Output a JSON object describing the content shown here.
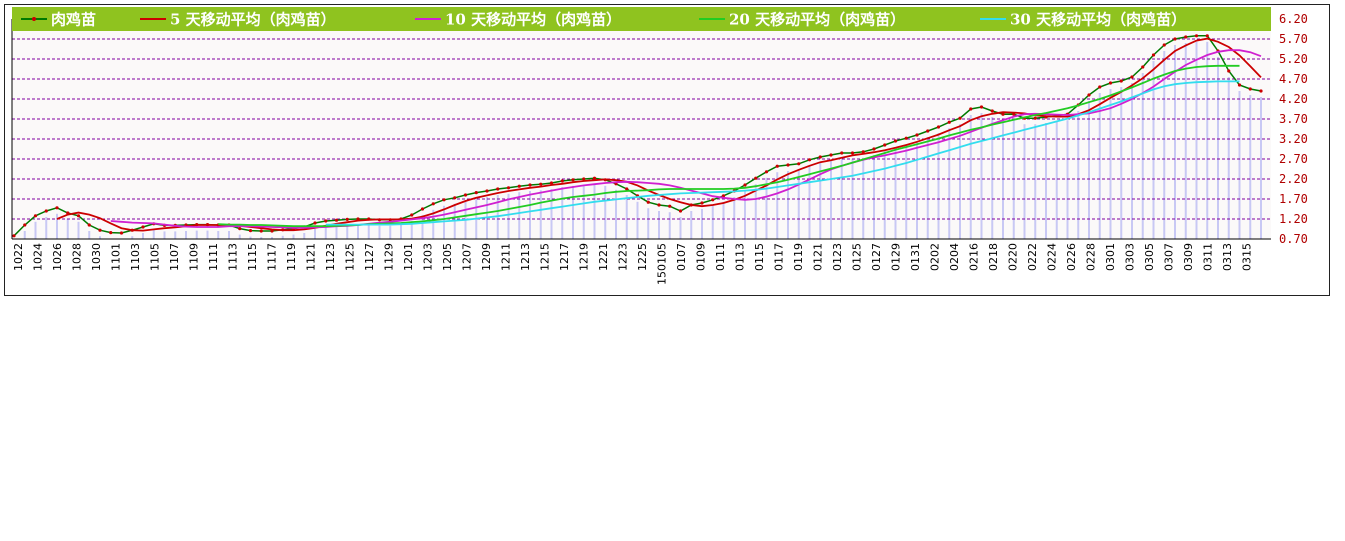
{
  "colors": {
    "legend_bg": "#8fc31f",
    "grid": "#7f00a0",
    "bars": "#c8c8f4",
    "tick_text": "#b00000"
  },
  "chart_data": {
    "type": "line",
    "ylim": [
      0.7,
      6.2
    ],
    "y_ticks": [
      "6.20",
      "5.70",
      "5.20",
      "4.70",
      "4.20",
      "3.70",
      "3.20",
      "2.70",
      "2.20",
      "1.70",
      "1.20",
      "0.70"
    ],
    "x_tick_labels": [
      "1022",
      "1024",
      "1026",
      "1028",
      "1030",
      "1101",
      "1103",
      "1105",
      "1107",
      "1109",
      "1111",
      "1113",
      "1115",
      "1117",
      "1119",
      "1121",
      "1123",
      "1125",
      "1127",
      "1129",
      "1201",
      "1203",
      "1205",
      "1207",
      "1209",
      "1211",
      "1213",
      "1215",
      "1217",
      "1219",
      "1221",
      "1223",
      "1225",
      "150105",
      "0107",
      "0109",
      "0111",
      "0113",
      "0115",
      "0117",
      "0119",
      "0121",
      "0123",
      "0125",
      "0127",
      "0129",
      "0131",
      "0202",
      "0204",
      "0216",
      "0218",
      "0220",
      "0222",
      "0224",
      "0226",
      "0228",
      "0301",
      "0303",
      "0305",
      "0307",
      "0309",
      "0311",
      "0313",
      "0315"
    ],
    "grid": true,
    "legend_position": "top",
    "series": [
      {
        "name": "肉鸡苗",
        "color": "#007a00",
        "marker_color": "#cc0000",
        "values": [
          0.78,
          1.05,
          1.28,
          1.4,
          1.48,
          1.35,
          1.28,
          1.05,
          0.92,
          0.86,
          0.85,
          0.92,
          1.0,
          1.08,
          1.04,
          1.04,
          1.05,
          1.06,
          1.06,
          1.05,
          1.05,
          0.96,
          0.91,
          0.9,
          0.9,
          0.93,
          0.96,
          1.0,
          1.1,
          1.15,
          1.17,
          1.19,
          1.2,
          1.2,
          1.18,
          1.18,
          1.2,
          1.3,
          1.45,
          1.58,
          1.68,
          1.73,
          1.8,
          1.86,
          1.9,
          1.95,
          1.98,
          2.02,
          2.05,
          2.07,
          2.1,
          2.15,
          2.18,
          2.2,
          2.22,
          2.18,
          2.08,
          1.95,
          1.78,
          1.62,
          1.55,
          1.52,
          1.4,
          1.55,
          1.6,
          1.68,
          1.78,
          1.9,
          2.05,
          2.22,
          2.38,
          2.52,
          2.55,
          2.58,
          2.68,
          2.75,
          2.8,
          2.85,
          2.85,
          2.88,
          2.95,
          3.05,
          3.15,
          3.22,
          3.3,
          3.4,
          3.5,
          3.62,
          3.72,
          3.95,
          4.0,
          3.9,
          3.82,
          3.82,
          3.72,
          3.72,
          3.75,
          3.78,
          3.82,
          4.05,
          4.3,
          4.5,
          4.6,
          4.65,
          4.75,
          5.0,
          5.3,
          5.55,
          5.7,
          5.75,
          5.78,
          5.78,
          5.4,
          4.9,
          4.55,
          4.45,
          4.4
        ]
      },
      {
        "name": "5 天移动平均（肉鸡苗）",
        "color": "#cc0000",
        "values": [
          null,
          null,
          null,
          null,
          1.2,
          1.31,
          1.36,
          1.31,
          1.22,
          1.09,
          0.97,
          0.92,
          0.91,
          0.94,
          0.97,
          0.99,
          1.02,
          1.05,
          1.05,
          1.05,
          1.05,
          1.03,
          1.0,
          0.97,
          0.94,
          0.92,
          0.92,
          0.94,
          0.98,
          1.03,
          1.08,
          1.12,
          1.16,
          1.18,
          1.19,
          1.19,
          1.19,
          1.21,
          1.26,
          1.34,
          1.44,
          1.55,
          1.65,
          1.73,
          1.79,
          1.85,
          1.9,
          1.94,
          1.98,
          2.01,
          2.05,
          2.08,
          2.12,
          2.15,
          2.17,
          2.19,
          2.17,
          2.13,
          2.04,
          1.91,
          1.8,
          1.7,
          1.62,
          1.55,
          1.52,
          1.55,
          1.6,
          1.68,
          1.78,
          1.91,
          2.04,
          2.19,
          2.32,
          2.43,
          2.53,
          2.62,
          2.67,
          2.73,
          2.79,
          2.83,
          2.87,
          2.92,
          2.98,
          3.05,
          3.13,
          3.22,
          3.31,
          3.42,
          3.52,
          3.67,
          3.77,
          3.83,
          3.87,
          3.86,
          3.84,
          3.79,
          3.77,
          3.76,
          3.76,
          3.82,
          3.92,
          4.07,
          4.23,
          4.38,
          4.54,
          4.72,
          4.94,
          5.18,
          5.4,
          5.54,
          5.66,
          5.71,
          5.63,
          5.5,
          5.29,
          5.02,
          4.74
        ]
      },
      {
        "name": "10 天移动平均（肉鸡苗）",
        "color": "#d020d0",
        "values": [
          null,
          null,
          null,
          null,
          null,
          null,
          null,
          null,
          null,
          1.15,
          1.13,
          1.11,
          1.1,
          1.09,
          1.06,
          1.03,
          1.01,
          1.0,
          1.0,
          1.0,
          1.02,
          1.02,
          1.02,
          1.01,
          1.0,
          0.99,
          0.98,
          0.98,
          0.99,
          1.0,
          1.02,
          1.03,
          1.05,
          1.08,
          1.11,
          1.13,
          1.16,
          1.19,
          1.22,
          1.26,
          1.31,
          1.37,
          1.43,
          1.49,
          1.55,
          1.62,
          1.69,
          1.75,
          1.81,
          1.86,
          1.91,
          1.96,
          2.0,
          2.04,
          2.07,
          2.1,
          2.12,
          2.13,
          2.12,
          2.1,
          2.08,
          2.04,
          1.98,
          1.91,
          1.84,
          1.77,
          1.73,
          1.7,
          1.68,
          1.7,
          1.76,
          1.84,
          1.94,
          2.06,
          2.19,
          2.32,
          2.44,
          2.53,
          2.61,
          2.68,
          2.74,
          2.79,
          2.85,
          2.91,
          2.98,
          3.05,
          3.12,
          3.2,
          3.28,
          3.38,
          3.48,
          3.58,
          3.67,
          3.76,
          3.82,
          3.83,
          3.82,
          3.81,
          3.8,
          3.82,
          3.84,
          3.9,
          3.97,
          4.08,
          4.2,
          4.35,
          4.51,
          4.7,
          4.88,
          5.05,
          5.18,
          5.3,
          5.38,
          5.42,
          5.42,
          5.37,
          5.27
        ]
      },
      {
        "name": "20 天移动平均（肉鸡苗）",
        "color": "#22cc22",
        "values": [
          null,
          null,
          null,
          null,
          null,
          null,
          null,
          null,
          null,
          null,
          null,
          null,
          null,
          null,
          null,
          null,
          null,
          null,
          null,
          1.07,
          1.06,
          1.06,
          1.05,
          1.05,
          1.04,
          1.03,
          1.02,
          1.02,
          1.02,
          1.02,
          1.03,
          1.04,
          1.05,
          1.07,
          1.08,
          1.09,
          1.1,
          1.12,
          1.14,
          1.17,
          1.2,
          1.24,
          1.28,
          1.32,
          1.36,
          1.4,
          1.45,
          1.5,
          1.55,
          1.61,
          1.66,
          1.71,
          1.75,
          1.78,
          1.81,
          1.85,
          1.88,
          1.9,
          1.91,
          1.92,
          1.94,
          1.95,
          1.95,
          1.95,
          1.95,
          1.95,
          1.95,
          1.96,
          1.98,
          2.02,
          2.07,
          2.12,
          2.18,
          2.25,
          2.32,
          2.39,
          2.46,
          2.53,
          2.61,
          2.69,
          2.77,
          2.85,
          2.93,
          3.0,
          3.07,
          3.14,
          3.21,
          3.29,
          3.36,
          3.43,
          3.49,
          3.56,
          3.62,
          3.68,
          3.74,
          3.8,
          3.85,
          3.91,
          3.97,
          4.04,
          4.12,
          4.2,
          4.29,
          4.39,
          4.49,
          4.6,
          4.71,
          4.81,
          4.9,
          4.96,
          5.0,
          5.02,
          5.03,
          5.03,
          5.03
        ]
      },
      {
        "name": "30 天移动平均（肉鸡苗）",
        "color": "#33ddee",
        "values": [
          null,
          null,
          null,
          null,
          null,
          null,
          null,
          null,
          null,
          null,
          null,
          null,
          null,
          null,
          null,
          null,
          null,
          null,
          null,
          null,
          null,
          null,
          null,
          null,
          null,
          null,
          null,
          null,
          null,
          1.06,
          1.06,
          1.06,
          1.06,
          1.06,
          1.06,
          1.06,
          1.07,
          1.08,
          1.1,
          1.12,
          1.14,
          1.16,
          1.18,
          1.21,
          1.24,
          1.27,
          1.31,
          1.35,
          1.39,
          1.43,
          1.47,
          1.51,
          1.55,
          1.59,
          1.63,
          1.66,
          1.69,
          1.72,
          1.75,
          1.78,
          1.8,
          1.82,
          1.84,
          1.85,
          1.86,
          1.87,
          1.88,
          1.89,
          1.91,
          1.93,
          1.96,
          2.0,
          2.04,
          2.08,
          2.12,
          2.16,
          2.2,
          2.24,
          2.28,
          2.34,
          2.4,
          2.46,
          2.53,
          2.6,
          2.68,
          2.76,
          2.84,
          2.92,
          3.0,
          3.08,
          3.15,
          3.22,
          3.29,
          3.36,
          3.43,
          3.5,
          3.57,
          3.64,
          3.71,
          3.79,
          3.87,
          3.96,
          4.05,
          4.14,
          4.24,
          4.34,
          4.44,
          4.52,
          4.57,
          4.6,
          4.62,
          4.63,
          4.64,
          4.64,
          4.64
        ]
      }
    ]
  }
}
